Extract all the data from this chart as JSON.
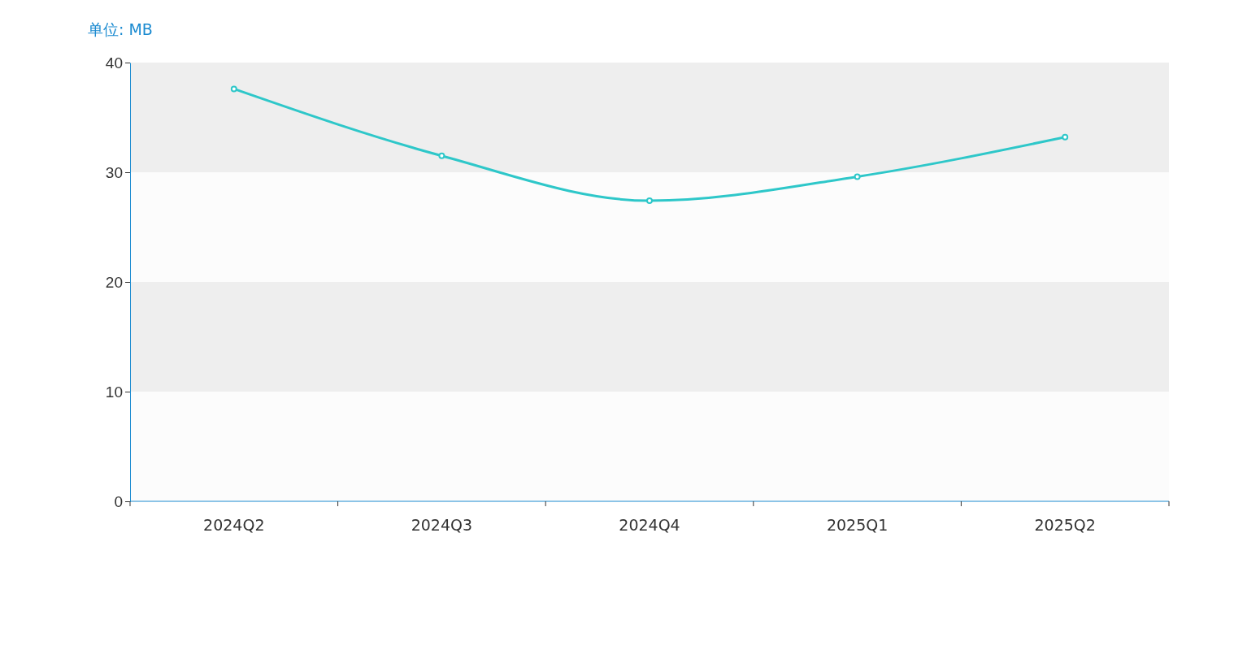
{
  "chart_data": {
    "type": "line",
    "ylabel": "单位: MB",
    "categories": [
      "2024Q2",
      "2024Q3",
      "2024Q4",
      "2025Q1",
      "2025Q2"
    ],
    "series": [
      {
        "color": "#2ec7c9",
        "values": [
          37.6,
          31.5,
          27.4,
          29.6,
          33.2
        ]
      }
    ],
    "ylim": [
      0,
      40
    ],
    "yticks": [
      0,
      10,
      20,
      30,
      40
    ],
    "marker": "circle",
    "line_style": "solid"
  }
}
